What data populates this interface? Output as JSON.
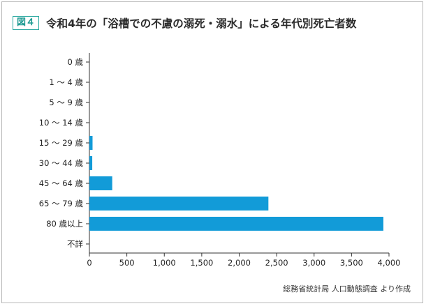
{
  "figure": {
    "badge": "図４",
    "title": "令和4年の「浴槽での不慮の溺死・溺水」による年代別死亡者数",
    "source": "総務省統計局 人口動態調査 より作成"
  },
  "chart_data": {
    "type": "bar",
    "orientation": "horizontal",
    "categories": [
      "0 歳",
      "1 ～ 4 歳",
      "5 ～ 9 歳",
      "10 ～ 14 歳",
      "15 ～ 29 歳",
      "30 ～ 44 歳",
      "45 ～ 64 歳",
      "65 ～ 79 歳",
      "80 歳以上",
      "不詳"
    ],
    "values": [
      0,
      0,
      0,
      0,
      42,
      38,
      305,
      2390,
      3925,
      0
    ],
    "xlim": [
      0,
      4000
    ],
    "xticks": [
      0,
      500,
      1000,
      1500,
      2000,
      2500,
      3000,
      3500,
      4000
    ],
    "xtick_labels": [
      "0",
      "500",
      "1,000",
      "1,500",
      "2,000",
      "2,500",
      "3,000",
      "3,500",
      "4,000"
    ],
    "bar_color": "#129bd8",
    "grid": false,
    "title": "令和4年の「浴槽での不慮の溺死・溺水」による年代別死亡者数"
  }
}
